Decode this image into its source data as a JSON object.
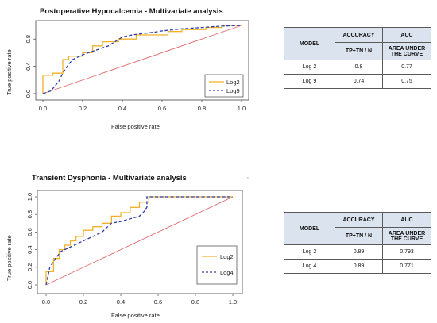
{
  "chart_data": [
    {
      "type": "line",
      "title": "Postoperative Hypocalcemia - Multivariate analysis",
      "xlabel": "False positive rate",
      "ylabel": "True positive rate",
      "xlim": [
        0,
        1
      ],
      "ylim": [
        0,
        1
      ],
      "xticks": [
        "0.0",
        "0.2",
        "0.4",
        "0.6",
        "0.8",
        "1.0"
      ],
      "yticks": [
        "0.0",
        "0.4",
        "0.8"
      ],
      "ytick_values": [
        0,
        0.4,
        0.8
      ],
      "legend_position": "bottom-right",
      "series": [
        {
          "name": "Log2",
          "color": "#f0b228",
          "dash": "solid",
          "x": [
            0,
            0,
            0.05,
            0.05,
            0.1,
            0.1,
            0.13,
            0.13,
            0.2,
            0.2,
            0.25,
            0.25,
            0.3,
            0.3,
            0.38,
            0.38,
            0.47,
            0.47,
            0.63,
            0.63,
            0.7,
            0.7,
            0.82,
            0.82,
            0.9,
            0.9,
            1.0
          ],
          "y": [
            0,
            0.27,
            0.27,
            0.3,
            0.3,
            0.5,
            0.5,
            0.55,
            0.55,
            0.6,
            0.6,
            0.7,
            0.7,
            0.76,
            0.76,
            0.8,
            0.8,
            0.86,
            0.86,
            0.91,
            0.91,
            0.94,
            0.94,
            0.97,
            0.97,
            1.0,
            1.0
          ]
        },
        {
          "name": "Log9",
          "color": "#2e3da8",
          "dash": "dashed",
          "x": [
            0,
            0.04,
            0.08,
            0.1,
            0.13,
            0.15,
            0.2,
            0.23,
            0.28,
            0.33,
            0.4,
            0.45,
            0.5,
            0.56,
            0.6,
            0.7,
            0.8,
            0.9,
            1.0
          ],
          "y": [
            0,
            0.04,
            0.18,
            0.3,
            0.43,
            0.5,
            0.57,
            0.6,
            0.65,
            0.7,
            0.83,
            0.86,
            0.88,
            0.9,
            0.92,
            0.95,
            0.97,
            0.99,
            1.0
          ]
        }
      ],
      "reference_line": {
        "x": [
          0,
          1
        ],
        "y": [
          0,
          1
        ],
        "color": "#e06a6a"
      }
    },
    {
      "type": "line",
      "title": "Transient Dysphonia - Multivariate analysis",
      "xlabel": "False positive rate",
      "ylabel": "True positive rate",
      "xlim": [
        0,
        1
      ],
      "ylim": [
        0,
        1
      ],
      "xticks": [
        "0.0",
        "0.2",
        "0.4",
        "0.6",
        "0.8",
        "1.0"
      ],
      "yticks": [
        "0.0",
        "0.2",
        "0.4",
        "0.6",
        "0.8",
        "1.0"
      ],
      "ytick_values": [
        0,
        0.2,
        0.4,
        0.6,
        0.8,
        1.0
      ],
      "legend_position": "bottom-right",
      "series": [
        {
          "name": "Log2",
          "color": "#f0b228",
          "dash": "solid",
          "x": [
            0,
            0,
            0.04,
            0.04,
            0.07,
            0.07,
            0.1,
            0.1,
            0.13,
            0.13,
            0.16,
            0.16,
            0.2,
            0.2,
            0.25,
            0.25,
            0.3,
            0.3,
            0.35,
            0.35,
            0.4,
            0.4,
            0.45,
            0.45,
            0.5,
            0.5,
            0.55,
            0.55,
            1.0
          ],
          "y": [
            0,
            0.15,
            0.15,
            0.3,
            0.3,
            0.4,
            0.4,
            0.45,
            0.45,
            0.5,
            0.5,
            0.55,
            0.55,
            0.62,
            0.62,
            0.66,
            0.66,
            0.7,
            0.7,
            0.78,
            0.78,
            0.82,
            0.82,
            0.88,
            0.88,
            0.94,
            0.94,
            1.0,
            1.0
          ]
        },
        {
          "name": "Log4",
          "color": "#2e3da8",
          "dash": "dashed",
          "x": [
            0,
            0.02,
            0.05,
            0.08,
            0.1,
            0.15,
            0.2,
            0.25,
            0.3,
            0.35,
            0.4,
            0.45,
            0.5,
            0.52,
            0.54,
            0.54,
            1.0
          ],
          "y": [
            0,
            0.2,
            0.3,
            0.38,
            0.4,
            0.45,
            0.5,
            0.55,
            0.6,
            0.7,
            0.72,
            0.75,
            0.78,
            0.82,
            0.88,
            1.0,
            1.0
          ]
        }
      ],
      "reference_line": {
        "x": [
          0,
          1
        ],
        "y": [
          0,
          1
        ],
        "color": "#e06a6a"
      }
    }
  ],
  "tables": [
    {
      "headers": {
        "model": "MODEL",
        "accuracy": "ACCURACY",
        "auc": "AUC",
        "accuracy_sub": "TP+TN / N",
        "auc_sub": "AREA UNDER THE CURVE"
      },
      "rows": [
        {
          "model": "Log 2",
          "accuracy": "0.8",
          "auc": "0.77"
        },
        {
          "model": "Log 9",
          "accuracy": "0.74",
          "auc": "0.75"
        }
      ]
    },
    {
      "headers": {
        "model": "MODEL",
        "accuracy": "ACCURACY",
        "auc": "AUC",
        "accuracy_sub": "TP+TN / N",
        "auc_sub": "AREA UNDER THE CURVE"
      },
      "rows": [
        {
          "model": "Log 2",
          "accuracy": "0.89",
          "auc": "0.793"
        },
        {
          "model": "Log 4",
          "accuracy": "0.89",
          "auc": "0.771"
        }
      ]
    }
  ],
  "stray_mark": "’"
}
